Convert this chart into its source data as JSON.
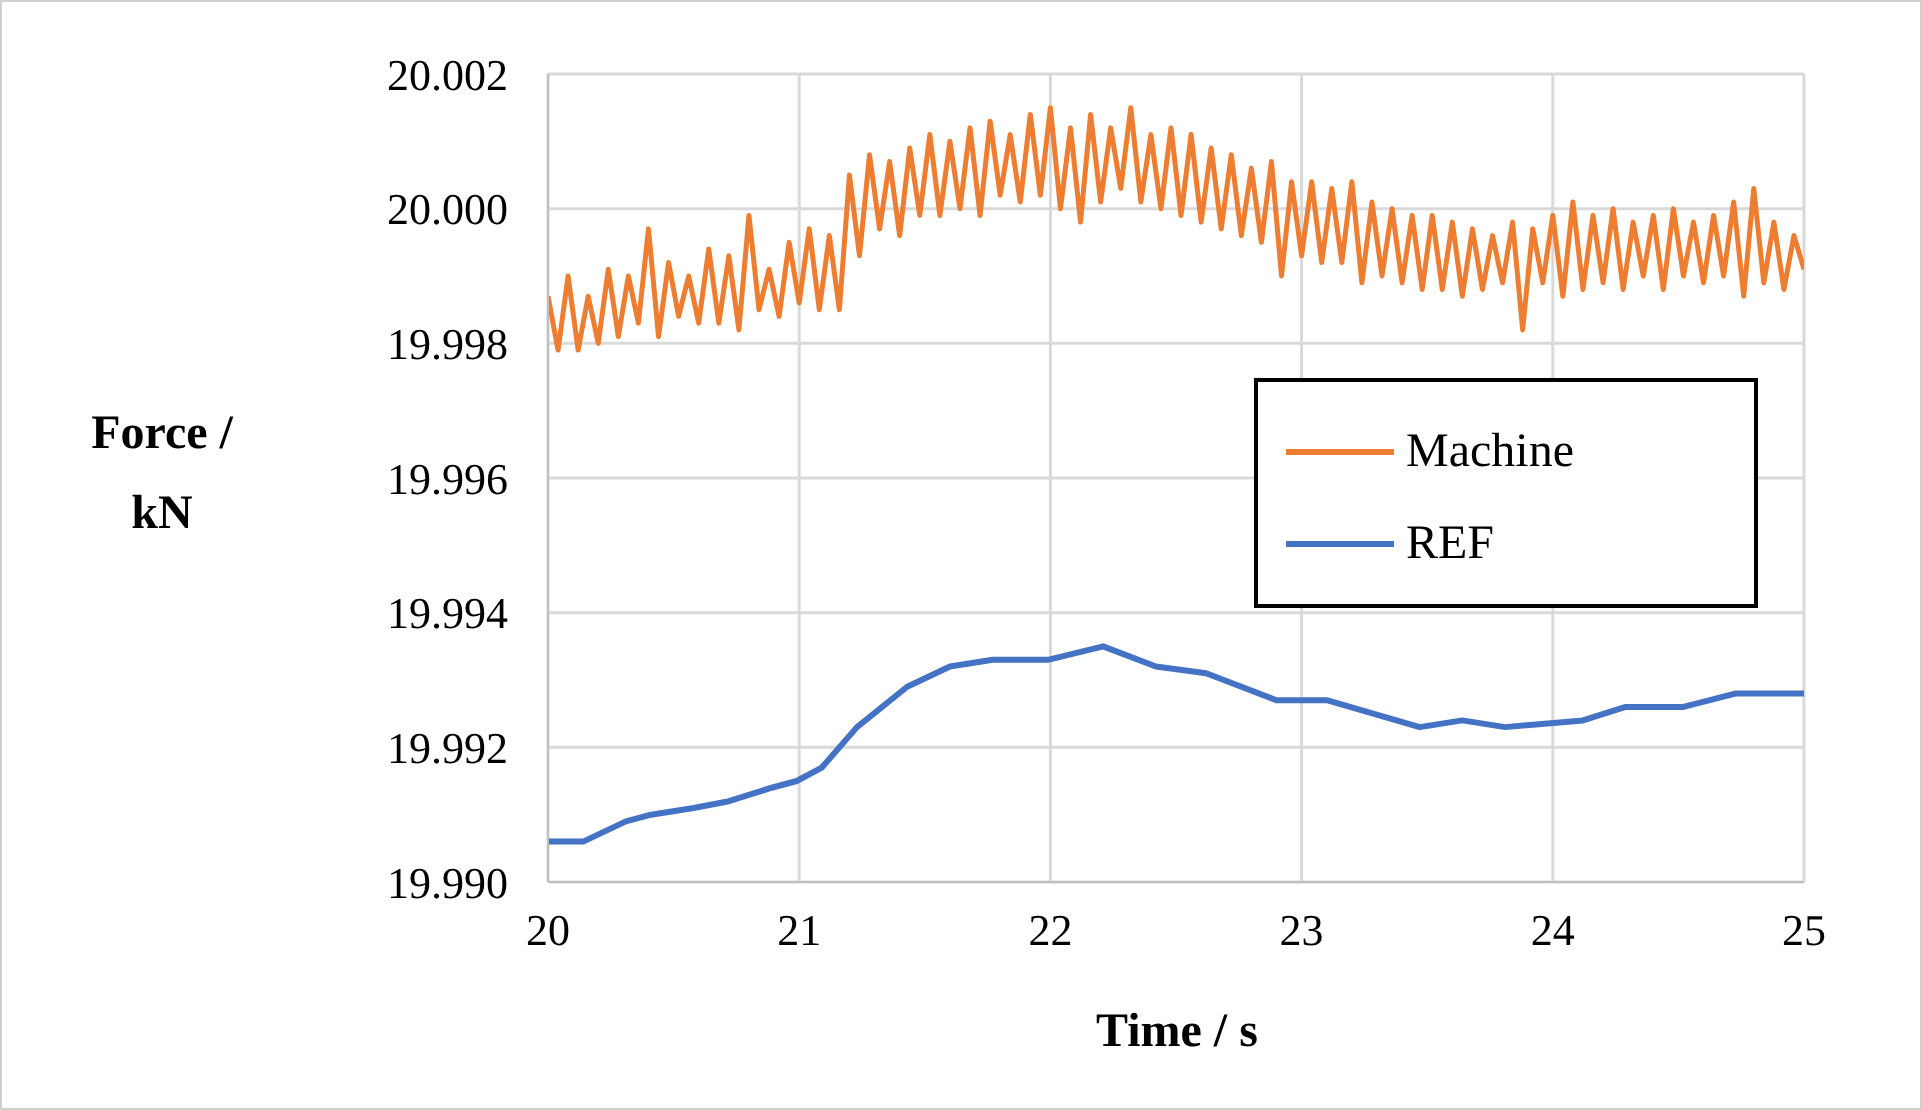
{
  "chart_data": {
    "type": "line",
    "xlabel": "Time / s",
    "ylabel": "Force / kN",
    "xlim": [
      20,
      25
    ],
    "xticks": [
      20,
      21,
      22,
      23,
      24,
      25
    ],
    "ylim": [
      19.99,
      20.002
    ],
    "yticks": [
      {
        "value": 19.99,
        "label": "19.990"
      },
      {
        "value": 19.992,
        "label": "19.992"
      },
      {
        "value": 19.994,
        "label": "19.994"
      },
      {
        "value": 19.996,
        "label": "19.996"
      },
      {
        "value": 19.998,
        "label": "19.998"
      },
      {
        "value": 20,
        "label": "20.000"
      },
      {
        "value": 20.002,
        "label": "20.002"
      }
    ],
    "grid": true,
    "legend": "right",
    "marker": "none",
    "line_style": "solid",
    "series": [
      {
        "name": "Machine",
        "color": "#ed7d31",
        "x": [
          20.0,
          20.04,
          20.08,
          20.12,
          20.16,
          20.2,
          20.24,
          20.28,
          20.32,
          20.36,
          20.4,
          20.44,
          20.48,
          20.52,
          20.56,
          20.6,
          20.64,
          20.68,
          20.72,
          20.76,
          20.8,
          20.84,
          20.88,
          20.92,
          20.96,
          21.0,
          21.04,
          21.08,
          21.12,
          21.16,
          21.2,
          21.24,
          21.28,
          21.32,
          21.36,
          21.4,
          21.44,
          21.48,
          21.52,
          21.56,
          21.6,
          21.64,
          21.68,
          21.72,
          21.76,
          21.8,
          21.84,
          21.88,
          21.92,
          21.96,
          22.0,
          22.04,
          22.08,
          22.12,
          22.16,
          22.2,
          22.24,
          22.28,
          22.32,
          22.36,
          22.4,
          22.44,
          22.48,
          22.52,
          22.56,
          22.6,
          22.64,
          22.68,
          22.72,
          22.76,
          22.8,
          22.84,
          22.88,
          22.92,
          22.96,
          23.0,
          23.04,
          23.08,
          23.12,
          23.16,
          23.2,
          23.24,
          23.28,
          23.32,
          23.36,
          23.4,
          23.44,
          23.48,
          23.52,
          23.56,
          23.6,
          23.64,
          23.68,
          23.72,
          23.76,
          23.8,
          23.84,
          23.88,
          23.92,
          23.96,
          24.0,
          24.04,
          24.08,
          24.12,
          24.16,
          24.2,
          24.24,
          24.28,
          24.32,
          24.36,
          24.4,
          24.44,
          24.48,
          24.52,
          24.56,
          24.6,
          24.64,
          24.68,
          24.72,
          24.76,
          24.8,
          24.84,
          24.88,
          24.92,
          24.96,
          25.0
        ],
        "values": [
          19.9987,
          19.9979,
          19.999,
          19.9979,
          19.9987,
          19.998,
          19.9991,
          19.9981,
          19.999,
          19.9983,
          19.9997,
          19.9981,
          19.9992,
          19.9984,
          19.999,
          19.9983,
          19.9994,
          19.9983,
          19.9993,
          19.9982,
          19.9999,
          19.9985,
          19.9991,
          19.9984,
          19.9995,
          19.9986,
          19.9997,
          19.9985,
          19.9996,
          19.9985,
          20.0005,
          19.9993,
          20.0008,
          19.9997,
          20.0007,
          19.9996,
          20.0009,
          19.9999,
          20.0011,
          19.9999,
          20.001,
          20.0,
          20.0012,
          19.9999,
          20.0013,
          20.0002,
          20.0011,
          20.0001,
          20.0014,
          20.0002,
          20.0015,
          20.0,
          20.0012,
          19.9998,
          20.0014,
          20.0001,
          20.0012,
          20.0003,
          20.0015,
          20.0001,
          20.0011,
          20.0,
          20.0012,
          19.9999,
          20.0011,
          19.9998,
          20.0009,
          19.9997,
          20.0008,
          19.9996,
          20.0006,
          19.9995,
          20.0007,
          19.999,
          20.0004,
          19.9993,
          20.0004,
          19.9992,
          20.0003,
          19.9992,
          20.0004,
          19.9989,
          20.0001,
          19.999,
          20.0,
          19.9989,
          19.9999,
          19.9988,
          19.9999,
          19.9988,
          19.9998,
          19.9987,
          19.9997,
          19.9988,
          19.9996,
          19.9989,
          19.9998,
          19.9982,
          19.9997,
          19.9989,
          19.9999,
          19.9987,
          20.0001,
          19.9988,
          19.9999,
          19.9989,
          20.0,
          19.9988,
          19.9998,
          19.999,
          19.9999,
          19.9988,
          20.0,
          19.999,
          19.9998,
          19.9989,
          19.9999,
          19.999,
          20.0001,
          19.9987,
          20.0003,
          19.9989,
          19.9998,
          19.9988,
          19.9996,
          19.9991
        ]
      },
      {
        "name": "REF",
        "color": "#4472c4",
        "x": [
          20.0,
          20.14,
          20.31,
          20.41,
          20.58,
          20.72,
          20.89,
          20.99,
          21.09,
          21.23,
          21.43,
          21.6,
          21.77,
          21.99,
          22.21,
          22.42,
          22.62,
          22.9,
          23.1,
          23.47,
          23.64,
          23.81,
          24.12,
          24.29,
          24.52,
          24.73,
          24.93,
          25.0
        ],
        "values": [
          19.9906,
          19.9906,
          19.9909,
          19.991,
          19.9911,
          19.9912,
          19.9914,
          19.9915,
          19.9917,
          19.9923,
          19.9929,
          19.9932,
          19.9933,
          19.9933,
          19.9935,
          19.9932,
          19.9931,
          19.9927,
          19.9927,
          19.9923,
          19.9924,
          19.9923,
          19.9924,
          19.9926,
          19.9926,
          19.9928,
          19.9928,
          19.9928
        ]
      }
    ]
  }
}
